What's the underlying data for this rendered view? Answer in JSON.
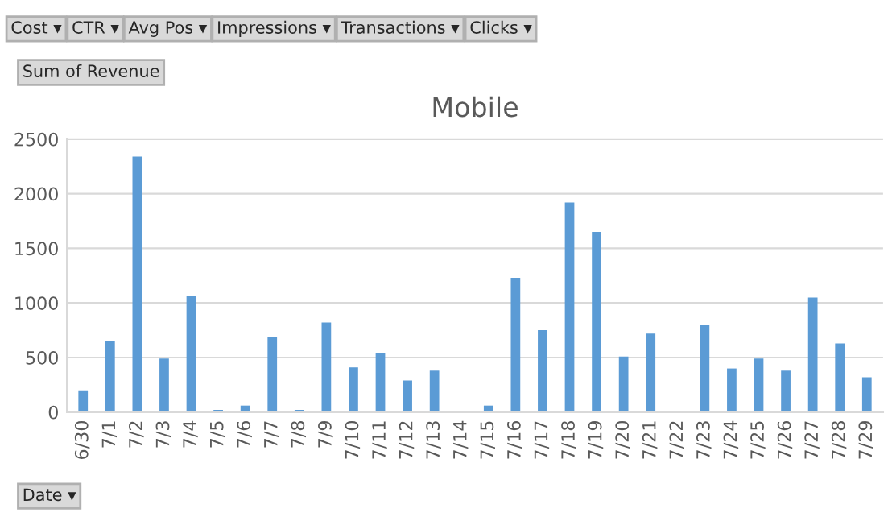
{
  "chart_data": {
    "type": "bar",
    "title": "Mobile",
    "xlabel": "Date ▾",
    "ylabel": "Sum of Revenue",
    "annotations": [
      "Cost ▾",
      "CTR ▾",
      "Avg Pos ▾",
      "Impressions ▾",
      "Transactions ▾",
      "Clicks ▾"
    ],
    "categories": [
      "6/30",
      "7/1",
      "7/2",
      "7/3",
      "7/4",
      "7/5",
      "7/6",
      "7/7",
      "7/8",
      "7/9",
      "7/10",
      "7/11",
      "7/12",
      "7/13",
      "7/14",
      "7/15",
      "7/16",
      "7/17",
      "7/18",
      "7/19",
      "7/20",
      "7/21",
      "7/22",
      "7/23",
      "7/24",
      "7/25",
      "7/26",
      "7/27",
      "7/28",
      "7/29"
    ],
    "values": [
      200,
      650,
      2340,
      490,
      1060,
      20,
      60,
      690,
      20,
      820,
      410,
      540,
      290,
      380,
      0,
      60,
      1230,
      750,
      1920,
      1650,
      510,
      720,
      0,
      800,
      400,
      490,
      380,
      1050,
      630,
      320
    ],
    "color": "#5b9bd5",
    "ylim": [
      0,
      2500
    ],
    "yticks": [
      0,
      500,
      1000,
      1500,
      2000,
      2500
    ],
    "grid": "y",
    "legend": false
  }
}
